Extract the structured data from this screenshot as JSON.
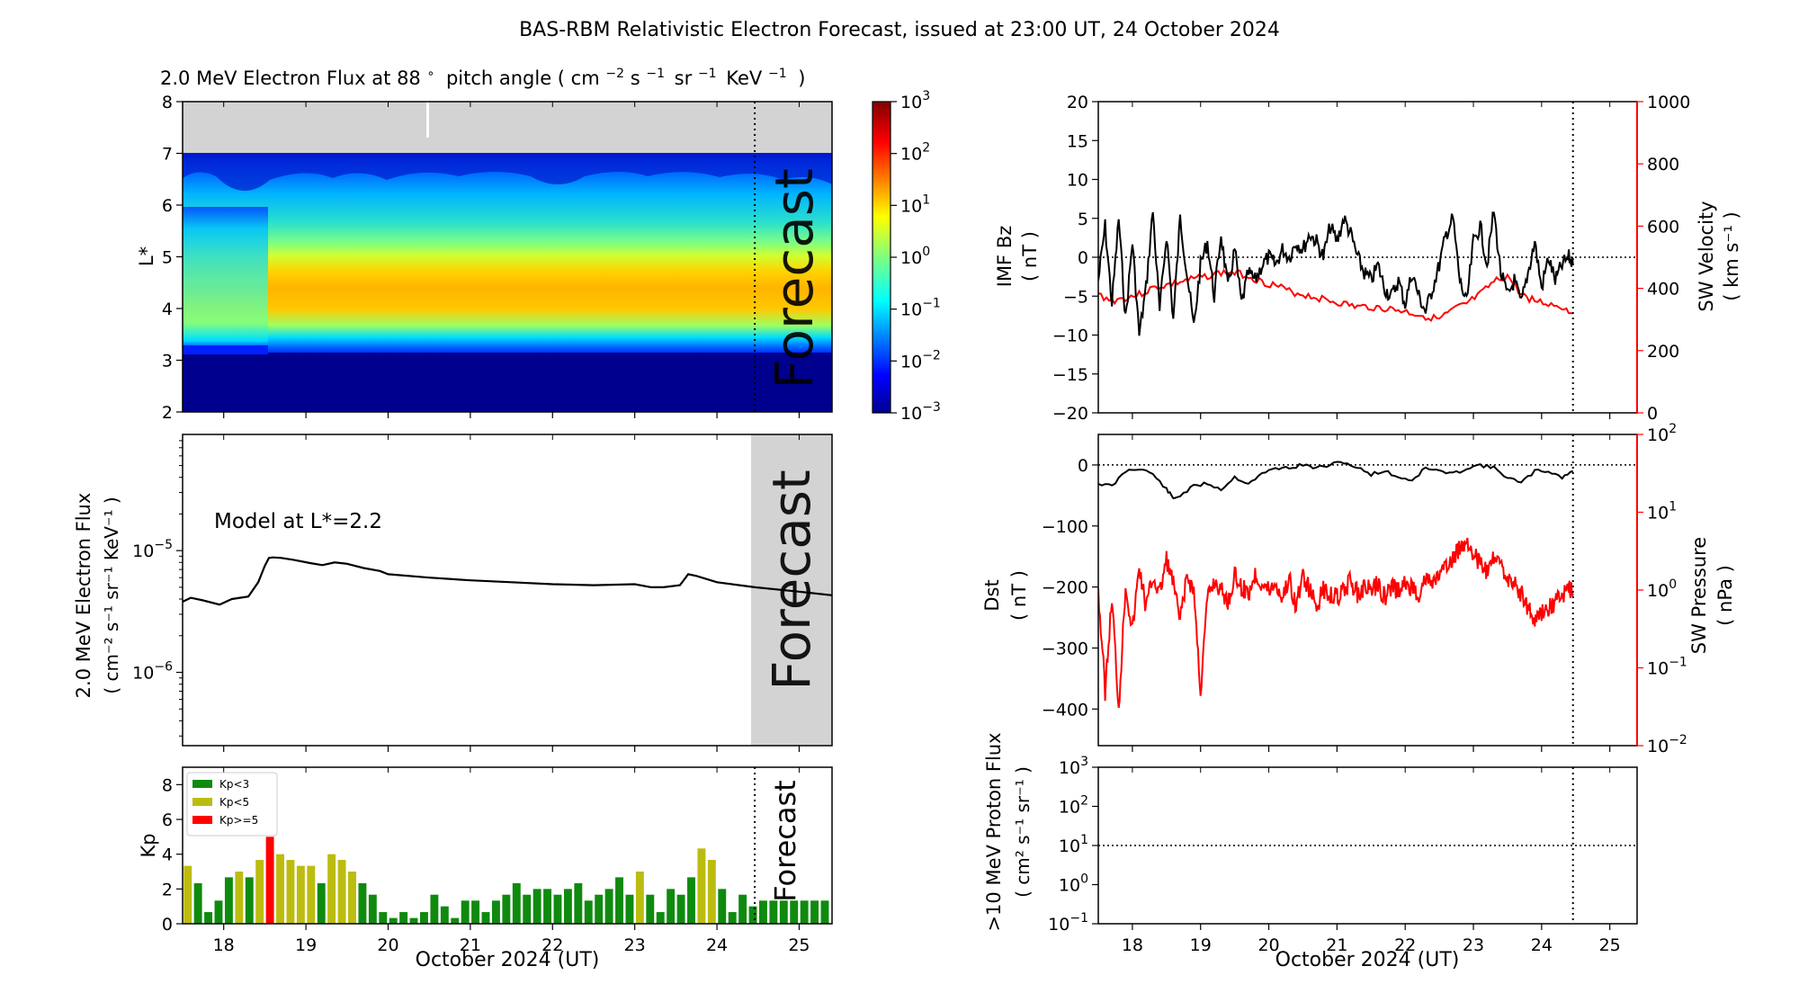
{
  "page_title": "BAS-RBM Relativistic Electron Forecast, issued at 23:00 UT, 24 October 2024",
  "colors": {
    "kp_green": "#0f8a0f",
    "kp_yellow": "#bcbc10",
    "kp_red": "#ff0000",
    "forecast_band": "#d3d3d3",
    "red_series": "#ff0000",
    "black_series": "#000000"
  },
  "date_axis": {
    "label": "October 2024 (UT)",
    "range": [
      17.5,
      25.4
    ],
    "ticks": [
      18,
      19,
      20,
      21,
      22,
      23,
      24,
      25
    ],
    "tick_labels": [
      "18",
      "19",
      "20",
      "21",
      "22",
      "23",
      "24",
      "25"
    ],
    "forecast_start": 24.46
  },
  "chart_data": [
    {
      "id": "flux-map",
      "type": "heatmap",
      "title": "2.0 MeV Electron Flux at 88∘ pitch angle ( cm⁻² s⁻¹ sr⁻¹ KeV⁻¹ )",
      "title_main": "2.0 MeV Electron Flux at 88",
      "title_deg": "∘",
      "title_tail": "pitch angle ( cm",
      "title_units": [
        {
          "base": "s",
          "exp": "−1"
        },
        {
          "base": "sr",
          "exp": "−1"
        },
        {
          "base": "KeV",
          "exp": "−1"
        }
      ],
      "title_exp1": "−2",
      "title_close": ")",
      "ylabel": "L*",
      "ylim": [
        2,
        8
      ],
      "y_ticks": [
        "2",
        "3",
        "4",
        "5",
        "6",
        "7",
        "8"
      ],
      "forecast_label": "Forecast",
      "no_data_above_L": 7,
      "colorbar": {
        "scale": "log",
        "range": [
          0.001,
          1000
        ],
        "tick_exponents": [
          "−3",
          "−2",
          "−1",
          "0",
          "1",
          "2",
          "3"
        ],
        "tick_base": "10"
      }
    },
    {
      "id": "flux-line",
      "type": "line",
      "ylabel": "2.0 MeV Electron Flux",
      "ylabel_units": "( cm⁻² s⁻¹ sr⁻¹ KeV⁻¹ )",
      "annotation": "Model at L*=2.2",
      "forecast_label": "Forecast",
      "yscale": "log",
      "ylim": [
        2.5e-07,
        9e-05
      ],
      "y_tick_labels": [
        {
          "base": "10",
          "exp": "−5"
        },
        {
          "base": "10",
          "exp": "−6"
        }
      ],
      "x": [
        17.5,
        17.6,
        17.75,
        17.95,
        18.1,
        18.3,
        18.42,
        18.5,
        18.55,
        18.6,
        18.7,
        18.85,
        19.05,
        19.2,
        19.35,
        19.5,
        19.7,
        19.9,
        20.0,
        20.5,
        21.0,
        21.5,
        22.0,
        22.5,
        23.0,
        23.2,
        23.35,
        23.55,
        23.65,
        23.75,
        24.0,
        24.46,
        25.0,
        25.4
      ],
      "values": [
        3.8e-06,
        4.1e-06,
        3.9e-06,
        3.6e-06,
        4e-06,
        4.2e-06,
        5.5e-06,
        7.5e-06,
        8.7e-06,
        8.8e-06,
        8.7e-06,
        8.4e-06,
        7.9e-06,
        7.6e-06,
        8e-06,
        7.8e-06,
        7.2e-06,
        6.8e-06,
        6.4e-06,
        6e-06,
        5.7e-06,
        5.5e-06,
        5.3e-06,
        5.2e-06,
        5.3e-06,
        5e-06,
        5e-06,
        5.2e-06,
        6.4e-06,
        6.2e-06,
        5.5e-06,
        5e-06,
        4.6e-06,
        4.3e-06
      ]
    },
    {
      "id": "kp-bars",
      "type": "bar",
      "ylabel": "Kp",
      "ylim": [
        0,
        9
      ],
      "y_ticks": [
        "0",
        "2",
        "4",
        "6",
        "8"
      ],
      "forecast_label": "Forecast",
      "legend": [
        {
          "label": "Kp<3",
          "color": "#0f8a0f"
        },
        {
          "label": "Kp<5",
          "color": "#bcbc10"
        },
        {
          "label": "Kp>=5",
          "color": "#ff0000"
        }
      ],
      "bar_start": 17.5,
      "bar_step": 0.125,
      "values": [
        3.33,
        2.33,
        0.67,
        1.33,
        2.67,
        3.0,
        2.67,
        3.67,
        5.0,
        4.0,
        3.67,
        3.33,
        3.33,
        2.33,
        4.0,
        3.67,
        3.0,
        2.33,
        1.67,
        0.67,
        0.33,
        0.67,
        0.33,
        0.67,
        1.67,
        1.0,
        0.33,
        1.33,
        1.33,
        0.67,
        1.33,
        1.67,
        2.33,
        1.67,
        2.0,
        2.0,
        1.67,
        2.0,
        2.33,
        1.33,
        1.67,
        2.0,
        2.67,
        1.67,
        3.0,
        1.67,
        0.67,
        2.0,
        1.67,
        2.67,
        4.33,
        3.67,
        2.0,
        0.67,
        1.67,
        1.0,
        1.33,
        1.33,
        1.33,
        1.33,
        1.33,
        1.33,
        1.33
      ]
    },
    {
      "id": "imf-sw",
      "type": "line",
      "ylabel": "IMF Bz",
      "ylabel_units": "( nT )",
      "ylim": [
        -20,
        20
      ],
      "y_ticks": [
        "−20",
        "−15",
        "−10",
        "−5",
        "0",
        "5",
        "10",
        "15",
        "20"
      ],
      "y2label": "SW Velocity",
      "y2label_units": "( km s⁻¹ )",
      "y2lim": [
        0,
        1000
      ],
      "y2_ticks": [
        "0",
        "200",
        "400",
        "600",
        "800",
        "1000"
      ],
      "series": [
        {
          "name": "IMF Bz",
          "axis": "left",
          "x": [
            17.5,
            17.6,
            17.7,
            17.8,
            17.9,
            18.0,
            18.1,
            18.2,
            18.3,
            18.4,
            18.5,
            18.6,
            18.7,
            18.8,
            18.9,
            19.0,
            19.1,
            19.2,
            19.3,
            19.4,
            19.5,
            19.6,
            19.7,
            19.8,
            19.9,
            20.0,
            20.1,
            20.2,
            20.3,
            20.4,
            20.5,
            20.6,
            20.7,
            20.8,
            20.9,
            21.0,
            21.1,
            21.2,
            21.3,
            21.4,
            21.5,
            21.6,
            21.7,
            21.8,
            21.9,
            22.0,
            22.1,
            22.2,
            22.3,
            22.4,
            22.5,
            22.6,
            22.7,
            22.8,
            22.9,
            23.0,
            23.1,
            23.2,
            23.3,
            23.4,
            23.5,
            23.6,
            23.7,
            23.8,
            23.9,
            24.0,
            24.1,
            24.2,
            24.3,
            24.4,
            24.46
          ],
          "values": [
            -3,
            4,
            -6,
            5,
            -8,
            2,
            -10,
            -4,
            6,
            -7,
            3,
            -8,
            5,
            -2,
            -9,
            -1,
            2,
            -5,
            3,
            -4,
            1,
            -6,
            -2,
            -3,
            -1,
            0,
            -1,
            1,
            0,
            2,
            1,
            3,
            2,
            0,
            4,
            2,
            5,
            3,
            0,
            -2,
            -3,
            -1,
            -4,
            -5,
            -3,
            -6,
            -2,
            -5,
            -7,
            -4,
            -1,
            3,
            5,
            -3,
            -6,
            2,
            4,
            -1,
            6,
            -2,
            -5,
            -3,
            -6,
            -2,
            2,
            -4,
            0,
            -3,
            -1,
            0,
            -1
          ]
        },
        {
          "name": "SW Velocity",
          "axis": "right",
          "x": [
            17.5,
            17.7,
            17.9,
            18.1,
            18.3,
            18.5,
            18.7,
            18.9,
            19.1,
            19.3,
            19.5,
            19.7,
            19.9,
            20.1,
            20.3,
            20.5,
            20.7,
            20.9,
            21.1,
            21.3,
            21.5,
            21.7,
            21.9,
            22.1,
            22.3,
            22.5,
            22.7,
            22.9,
            23.1,
            23.3,
            23.5,
            23.7,
            23.9,
            24.1,
            24.3,
            24.46
          ],
          "values": [
            380,
            360,
            370,
            380,
            400,
            410,
            420,
            430,
            440,
            450,
            450,
            440,
            420,
            410,
            390,
            380,
            370,
            360,
            350,
            340,
            340,
            335,
            330,
            320,
            310,
            300,
            330,
            350,
            380,
            420,
            440,
            380,
            360,
            350,
            340,
            320
          ]
        }
      ]
    },
    {
      "id": "dst-pressure",
      "type": "line",
      "ylabel": "Dst",
      "ylabel_units": "( nT )",
      "ylim": [
        -460,
        50
      ],
      "y_ticks": [
        "0",
        "−100",
        "−200",
        "−300",
        "−400"
      ],
      "y2label": "SW Pressure",
      "y2label_units": "( nPa )",
      "y2scale": "log",
      "y2lim": [
        0.01,
        100
      ],
      "y2_tick_exponents": [
        "−2",
        "−1",
        "0",
        "1",
        "2"
      ],
      "y2_tick_base": "10",
      "series": [
        {
          "name": "Dst",
          "axis": "left",
          "x": [
            17.5,
            17.7,
            17.9,
            18.1,
            18.3,
            18.5,
            18.6,
            18.7,
            18.9,
            19.1,
            19.3,
            19.5,
            19.7,
            19.9,
            20.1,
            20.3,
            20.5,
            20.7,
            20.9,
            21.1,
            21.3,
            21.5,
            21.7,
            21.9,
            22.1,
            22.3,
            22.5,
            22.7,
            22.9,
            23.1,
            23.3,
            23.5,
            23.7,
            23.9,
            24.1,
            24.3,
            24.46
          ],
          "values": [
            -30,
            -35,
            -10,
            -5,
            -15,
            -40,
            -55,
            -50,
            -35,
            -30,
            -40,
            -20,
            -30,
            -15,
            -5,
            -5,
            0,
            -5,
            0,
            5,
            -5,
            -15,
            -10,
            -20,
            -25,
            -5,
            -10,
            -15,
            -5,
            0,
            -5,
            -20,
            -30,
            -10,
            -10,
            -20,
            -10
          ]
        },
        {
          "name": "SW Pressure",
          "axis": "right",
          "x": [
            17.5,
            17.6,
            17.7,
            17.8,
            17.9,
            18.0,
            18.1,
            18.2,
            18.3,
            18.4,
            18.5,
            18.6,
            18.7,
            18.8,
            18.9,
            19.0,
            19.1,
            19.2,
            19.3,
            19.4,
            19.5,
            19.6,
            19.7,
            19.8,
            19.9,
            20.0,
            20.1,
            20.2,
            20.3,
            20.4,
            20.5,
            20.6,
            20.7,
            20.8,
            20.9,
            21.0,
            21.1,
            21.2,
            21.3,
            21.4,
            21.5,
            21.6,
            21.7,
            21.8,
            21.9,
            22.0,
            22.1,
            22.2,
            22.3,
            22.4,
            22.5,
            22.6,
            22.7,
            22.8,
            22.9,
            23.0,
            23.1,
            23.2,
            23.3,
            23.4,
            23.5,
            23.6,
            23.7,
            23.8,
            23.9,
            24.0,
            24.1,
            24.2,
            24.3,
            24.4,
            24.46
          ],
          "values": [
            1.0,
            0.05,
            0.8,
            0.03,
            1.2,
            0.3,
            2.0,
            0.6,
            1.5,
            0.9,
            2.5,
            1.2,
            0.4,
            1.5,
            1.0,
            0.05,
            0.8,
            1.3,
            1.0,
            0.7,
            1.5,
            1.1,
            0.9,
            1.6,
            1.2,
            1.0,
            1.2,
            0.8,
            1.4,
            0.6,
            1.6,
            1.0,
            0.6,
            1.0,
            0.9,
            0.8,
            1.0,
            1.3,
            0.9,
            1.1,
            1.0,
            1.2,
            0.8,
            1.1,
            1.0,
            1.2,
            1.1,
            0.9,
            1.4,
            1.2,
            1.6,
            1.8,
            2.5,
            3.5,
            4.5,
            3.0,
            2.2,
            1.6,
            2.5,
            2.0,
            1.5,
            1.2,
            0.9,
            0.6,
            0.4,
            0.5,
            0.6,
            0.7,
            0.9,
            1.0,
            0.9
          ]
        }
      ]
    },
    {
      "id": "proton-flux",
      "type": "line",
      "ylabel": ">10 MeV Proton Flux",
      "ylabel_units": "( cm² s⁻¹ sr⁻¹ )",
      "yscale": "log",
      "ylim": [
        0.1,
        1000
      ],
      "y_tick_exponents": [
        "−1",
        "0",
        "1",
        "2",
        "3"
      ],
      "y_tick_base": "10",
      "threshold": 10
    }
  ]
}
